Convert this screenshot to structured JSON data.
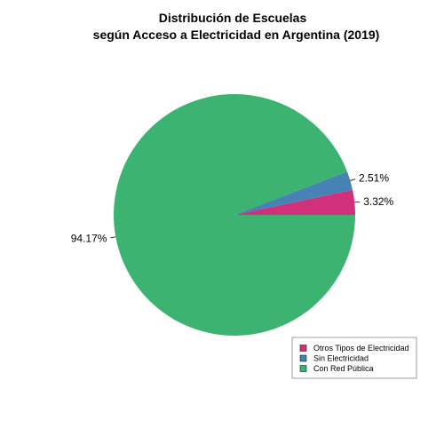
{
  "chart_data": {
    "type": "pie",
    "title": "Distribución de Escuelas",
    "subtitle": "según Acceso a Electricidad en Argentina (2019)",
    "slices": [
      {
        "name": "Otros Tipos de Electricidad",
        "value": 3.32,
        "label": "3.32%",
        "color": "#D1307A"
      },
      {
        "name": "Sin Electricidad",
        "value": 2.51,
        "label": "2.51%",
        "color": "#4682B4"
      },
      {
        "name": "Con Red Pública",
        "value": 94.17,
        "label": "94.17%",
        "color": "#3CB371"
      }
    ],
    "start_angle_deg": 0,
    "direction": "counterclockwise",
    "legend_position": "bottom-right"
  }
}
